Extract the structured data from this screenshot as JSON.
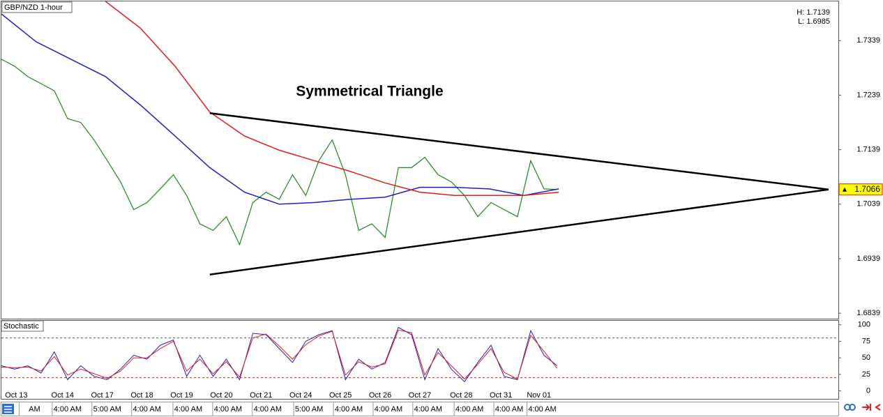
{
  "chart_data": {
    "type": "line",
    "title": "GBP/NZD 1-hour",
    "high_label": "H: 1.7139",
    "low_label": "L: 1.6985",
    "annotation": "Symmetrical Triangle",
    "xlim": [
      0,
      506
    ],
    "ylim": [
      1.6829,
      1.7411
    ],
    "yticks": [
      1.7339,
      1.7239,
      1.7139,
      1.7039,
      1.6939,
      1.6839
    ],
    "last_price": 1.7066,
    "date_ticks": [
      {
        "value": 9,
        "label": "Oct 13"
      },
      {
        "value": 37,
        "label": "Oct 14"
      },
      {
        "value": 61,
        "label": "Oct 17"
      },
      {
        "value": 85,
        "label": "Oct 18"
      },
      {
        "value": 109,
        "label": "Oct 19"
      },
      {
        "value": 133,
        "label": "Oct 20"
      },
      {
        "value": 157,
        "label": "Oct 21"
      },
      {
        "value": 181,
        "label": "Oct 24"
      },
      {
        "value": 205,
        "label": "Oct 25"
      },
      {
        "value": 229,
        "label": "Oct 26"
      },
      {
        "value": 253,
        "label": "Oct 27"
      },
      {
        "value": 278,
        "label": "Oct 28"
      },
      {
        "value": 302,
        "label": "Oct 31"
      },
      {
        "value": 325,
        "label": "Nov 01"
      }
    ],
    "time_ticks": [
      {
        "value": 20,
        "label": "AM"
      },
      {
        "value": 40,
        "label": "4:00 AM"
      },
      {
        "value": 64,
        "label": "5:00 AM"
      },
      {
        "value": 88,
        "label": "4:00 AM"
      },
      {
        "value": 113,
        "label": "4:00 AM"
      },
      {
        "value": 137,
        "label": "4:00 AM"
      },
      {
        "value": 161,
        "label": "4:00 AM"
      },
      {
        "value": 186,
        "label": "5:00 AM"
      },
      {
        "value": 210,
        "label": "4:00 AM"
      },
      {
        "value": 234,
        "label": "4:00 AM"
      },
      {
        "value": 258,
        "label": "4:00 AM"
      },
      {
        "value": 283,
        "label": "4:00 AM"
      },
      {
        "value": 307,
        "label": "4:00 AM"
      },
      {
        "value": 327,
        "label": "4:00 AM"
      }
    ],
    "series": [
      {
        "color": "#1a8a1a",
        "x": [
          0,
          8,
          16,
          24,
          32,
          40,
          48,
          56,
          64,
          72,
          80,
          88,
          96,
          104,
          112,
          120,
          128,
          136,
          144,
          152,
          160,
          168,
          176,
          184,
          192,
          200,
          208,
          216,
          224,
          232,
          240,
          248,
          256,
          264,
          272,
          280,
          288,
          296,
          304,
          312,
          320,
          328,
          336
        ],
        "values": [
          1.7305,
          1.7292,
          1.7273,
          1.726,
          1.7247,
          1.7196,
          1.7189,
          1.7157,
          1.7119,
          1.708,
          1.7029,
          1.7042,
          1.7067,
          1.7093,
          1.7055,
          1.7003,
          1.6991,
          1.7016,
          1.6965,
          1.7042,
          1.7061,
          1.7048,
          1.7093,
          1.7055,
          1.7119,
          1.7157,
          1.7093,
          1.6991,
          1.7003,
          1.6978,
          1.7106,
          1.7106,
          1.7125,
          1.7093,
          1.708,
          1.7055,
          1.7016,
          1.7042,
          1.7029,
          1.7016,
          1.7119,
          1.7067,
          1.7066
        ]
      },
      {
        "color": "#1f1fbf",
        "x": [
          0,
          21,
          42,
          63,
          84,
          105,
          126,
          147,
          168,
          189,
          211,
          232,
          253,
          274,
          295,
          316,
          337
        ],
        "values": [
          1.7388,
          1.7337,
          1.7305,
          1.7273,
          1.7221,
          1.7164,
          1.7106,
          1.7061,
          1.7039,
          1.7042,
          1.7048,
          1.7052,
          1.707,
          1.707,
          1.7067,
          1.7055,
          1.7067
        ]
      },
      {
        "color": "#e01b1b",
        "x": [
          63,
          84,
          105,
          126,
          147,
          168,
          189,
          211,
          232,
          253,
          274,
          295,
          316,
          337
        ],
        "values": [
          1.7411,
          1.7362,
          1.7292,
          1.7208,
          1.7164,
          1.7138,
          1.7119,
          1.7099,
          1.7078,
          1.7061,
          1.7055,
          1.7055,
          1.7055,
          1.7061
        ]
      }
    ],
    "trendlines": [
      {
        "color": "#000000",
        "x": [
          126,
          500
        ],
        "values": [
          1.7206,
          1.7066
        ]
      },
      {
        "color": "#000000",
        "x": [
          126,
          500
        ],
        "values": [
          1.691,
          1.7066
        ]
      }
    ],
    "stochastic": {
      "title": "Stochastic",
      "ylim": [
        -12,
        106
      ],
      "yticks": [
        100,
        75,
        50,
        25,
        0
      ],
      "levels": [
        {
          "value": 80,
          "color": "#555555"
        },
        {
          "value": 20,
          "color": "#e01b1b"
        }
      ],
      "series": [
        {
          "color": "#1f1fbf",
          "x": [
            0,
            8,
            16,
            24,
            32,
            40,
            48,
            56,
            64,
            72,
            80,
            88,
            96,
            104,
            112,
            120,
            128,
            136,
            144,
            152,
            160,
            168,
            176,
            184,
            192,
            200,
            208,
            216,
            224,
            232,
            240,
            248,
            256,
            264,
            272,
            280,
            288,
            296,
            304,
            312,
            320,
            328,
            336
          ],
          "values": [
            38,
            33,
            38,
            27,
            59,
            17,
            38,
            22,
            17,
            33,
            54,
            48,
            69,
            77,
            22,
            54,
            22,
            48,
            17,
            87,
            85,
            64,
            43,
            75,
            85,
            91,
            17,
            48,
            33,
            43,
            96,
            85,
            17,
            64,
            33,
            14,
            43,
            69,
            22,
            17,
            91,
            54,
            38
          ]
        },
        {
          "color": "#e01b1b",
          "x": [
            0,
            8,
            16,
            24,
            32,
            40,
            48,
            56,
            64,
            72,
            80,
            88,
            96,
            104,
            112,
            120,
            128,
            136,
            144,
            152,
            160,
            168,
            176,
            184,
            192,
            200,
            208,
            216,
            224,
            232,
            240,
            248,
            256,
            264,
            272,
            280,
            288,
            296,
            304,
            312,
            320,
            328,
            336
          ],
          "values": [
            36,
            35,
            36,
            30,
            52,
            24,
            33,
            26,
            19,
            30,
            50,
            50,
            64,
            75,
            30,
            48,
            26,
            44,
            21,
            80,
            86,
            68,
            48,
            70,
            83,
            90,
            24,
            44,
            36,
            41,
            92,
            88,
            24,
            58,
            38,
            18,
            40,
            64,
            28,
            18,
            84,
            60,
            34
          ]
        }
      ]
    }
  }
}
